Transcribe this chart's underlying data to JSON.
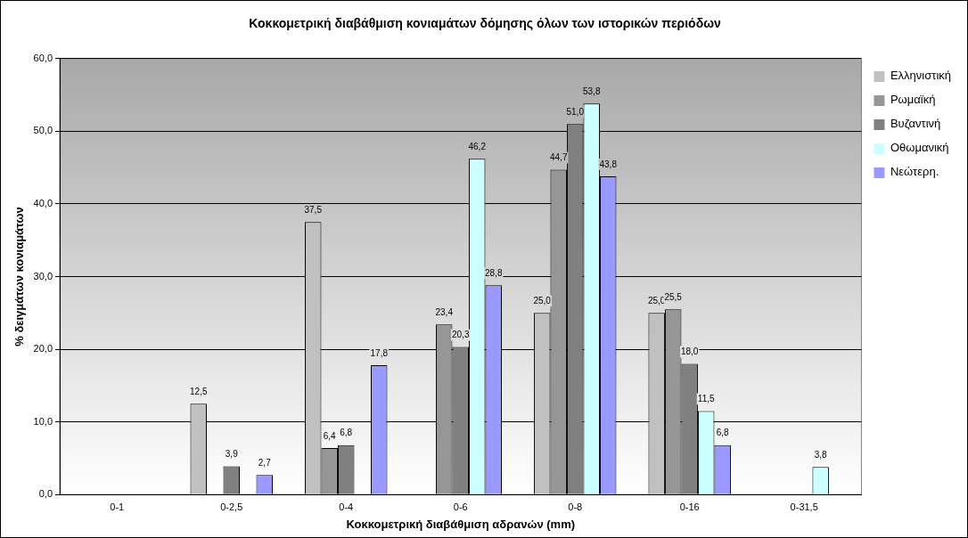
{
  "chart_data": {
    "type": "bar",
    "title": "Κοκκομετρική διαβάθμιση κονιαμάτων δόμησης όλων των ιστορικών περιόδων",
    "xlabel": "Κοκκομετρική διαβάθμιση αδρανών (mm)",
    "ylabel": "% δειγμάτων κονιαμάτων",
    "categories": [
      "0-1",
      "0-2,5",
      "0-4",
      "0-6",
      "0-8",
      "0-16",
      "0-31,5"
    ],
    "series": [
      {
        "name": "Ελληνιστική",
        "color": "#c0c0c0",
        "values": [
          null,
          12.5,
          37.5,
          null,
          25.0,
          25.0,
          null
        ],
        "value_labels": [
          null,
          "12,5",
          "37,5",
          null,
          "25,0",
          "25,0",
          null
        ]
      },
      {
        "name": "Ρωμαϊκή",
        "color": "#969696",
        "values": [
          null,
          null,
          6.4,
          23.4,
          44.7,
          25.5,
          null
        ],
        "value_labels": [
          null,
          null,
          "6,4",
          "23,4",
          "44,7",
          "25,5",
          null
        ]
      },
      {
        "name": "Βυζαντινή",
        "color": "#808080",
        "values": [
          null,
          3.9,
          6.8,
          20.3,
          51.0,
          18.0,
          null
        ],
        "value_labels": [
          null,
          "3,9",
          "6,8",
          "20,3",
          "51,0",
          "18,0",
          null
        ]
      },
      {
        "name": "Οθωμανική",
        "color": "#ccffff",
        "values": [
          null,
          null,
          null,
          46.2,
          53.8,
          11.5,
          3.8
        ],
        "value_labels": [
          null,
          null,
          null,
          "46,2",
          "53,8",
          "11,5",
          "3,8"
        ]
      },
      {
        "name": "Νεώτερη.",
        "color": "#9999ff",
        "values": [
          null,
          2.7,
          17.8,
          28.8,
          43.8,
          6.8,
          null
        ],
        "value_labels": [
          null,
          "2,7",
          "17,8",
          "28,8",
          "43,8",
          "6,8",
          null
        ]
      }
    ],
    "ylim": [
      0,
      60
    ],
    "yticks": [
      {
        "value": 0,
        "label": "0,0"
      },
      {
        "value": 10,
        "label": "10,0"
      },
      {
        "value": 20,
        "label": "20,0"
      },
      {
        "value": 30,
        "label": "30,0"
      },
      {
        "value": 40,
        "label": "40,0"
      },
      {
        "value": 50,
        "label": "50,0"
      },
      {
        "value": 60,
        "label": "60,0"
      }
    ],
    "grid": "y",
    "legend": "right"
  }
}
